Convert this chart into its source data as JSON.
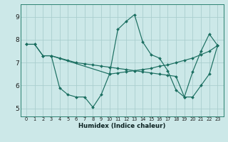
{
  "xlabel": "Humidex (Indice chaleur)",
  "bg_color": "#cce8e8",
  "line_color": "#1a6e60",
  "grid_color": "#aacece",
  "ylim": [
    4.65,
    9.55
  ],
  "yticks": [
    5,
    6,
    7,
    8,
    9
  ],
  "xticks": [
    0,
    1,
    2,
    3,
    4,
    5,
    6,
    7,
    8,
    9,
    10,
    11,
    12,
    13,
    14,
    15,
    16,
    17,
    18,
    19,
    20,
    21,
    22,
    23
  ],
  "line_spike_x": [
    3,
    4,
    5,
    6,
    7,
    8,
    9,
    10,
    11,
    12,
    13,
    14,
    15,
    16,
    17,
    18,
    19,
    20,
    21,
    22,
    23
  ],
  "line_spike_y": [
    7.3,
    5.9,
    5.6,
    5.5,
    5.5,
    5.05,
    5.6,
    6.5,
    8.45,
    8.8,
    9.1,
    7.9,
    7.35,
    7.2,
    6.65,
    5.8,
    5.5,
    6.6,
    7.5,
    8.25,
    7.75
  ],
  "line_desc_x": [
    0,
    1,
    2,
    3,
    4,
    5,
    6,
    7,
    8,
    9,
    10,
    11,
    12,
    13,
    14,
    15,
    16,
    17,
    18,
    19,
    20,
    21,
    22,
    23
  ],
  "line_desc_y": [
    7.8,
    7.8,
    7.3,
    7.3,
    7.2,
    7.1,
    7.0,
    6.95,
    6.9,
    6.85,
    6.8,
    6.75,
    6.7,
    6.65,
    6.6,
    6.55,
    6.5,
    6.45,
    6.4,
    5.5,
    5.5,
    6.0,
    6.5,
    7.75
  ],
  "line_asc_x": [
    0,
    1,
    2,
    3,
    10,
    11,
    12,
    13,
    14,
    15,
    16,
    17,
    18,
    19,
    20,
    21,
    22,
    23
  ],
  "line_asc_y": [
    7.8,
    7.8,
    7.3,
    7.3,
    6.5,
    6.55,
    6.6,
    6.65,
    6.7,
    6.75,
    6.85,
    6.9,
    7.0,
    7.1,
    7.2,
    7.35,
    7.5,
    7.75
  ]
}
